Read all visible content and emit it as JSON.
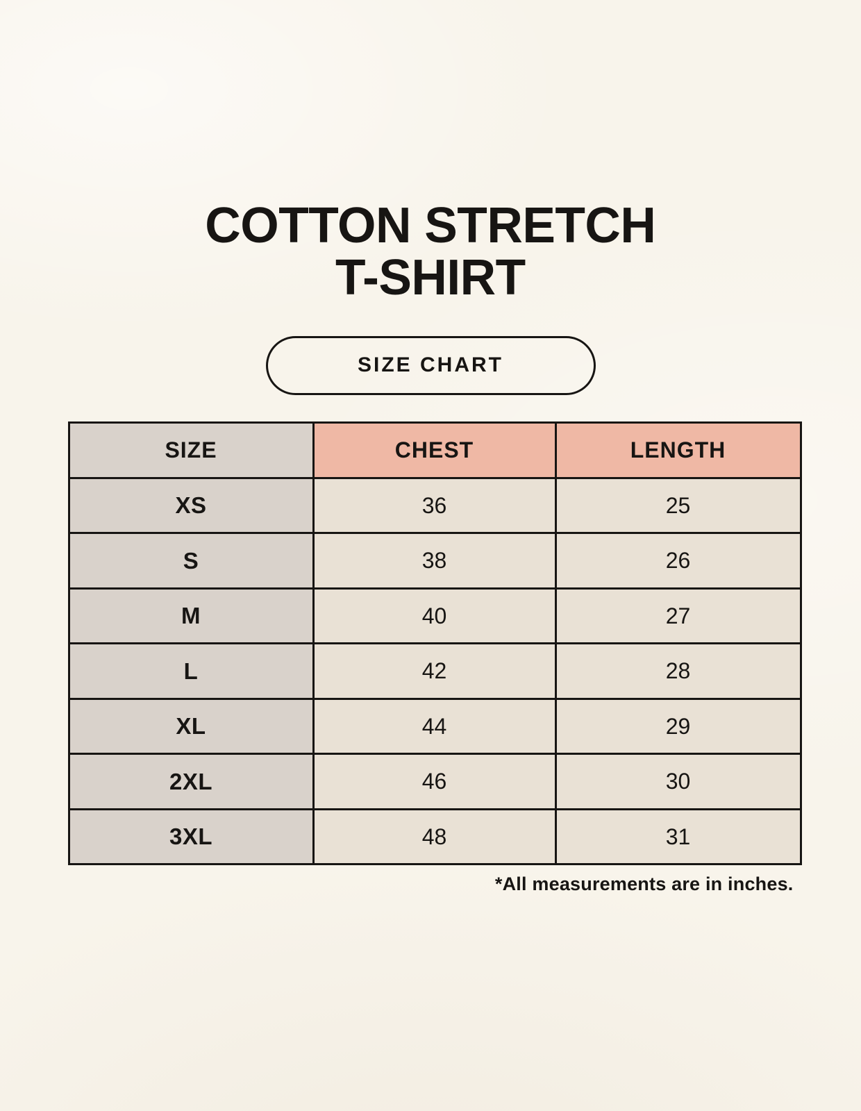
{
  "page": {
    "title_line1": "COTTON STRETCH",
    "title_line2": "T-SHIRT",
    "badge_label": "SIZE CHART",
    "footnote": "*All measurements are in inches."
  },
  "colors": {
    "background": "#f8f4eb",
    "header_accent": "#efb8a5",
    "size_column_bg": "#d9d2cb",
    "data_cell_bg": "#e9e1d5",
    "border_and_text": "#171513"
  },
  "chart_data": {
    "type": "table",
    "title": "COTTON STRETCH T-SHIRT",
    "subtitle": "SIZE CHART",
    "units": "inches",
    "columns": [
      "SIZE",
      "CHEST",
      "LENGTH"
    ],
    "rows": [
      {
        "size": "XS",
        "chest": "36",
        "length": "25"
      },
      {
        "size": "S",
        "chest": "38",
        "length": "26"
      },
      {
        "size": "M",
        "chest": "40",
        "length": "27"
      },
      {
        "size": "L",
        "chest": "42",
        "length": "28"
      },
      {
        "size": "XL",
        "chest": "44",
        "length": "29"
      },
      {
        "size": "2XL",
        "chest": "46",
        "length": "30"
      },
      {
        "size": "3XL",
        "chest": "48",
        "length": "31"
      }
    ]
  }
}
